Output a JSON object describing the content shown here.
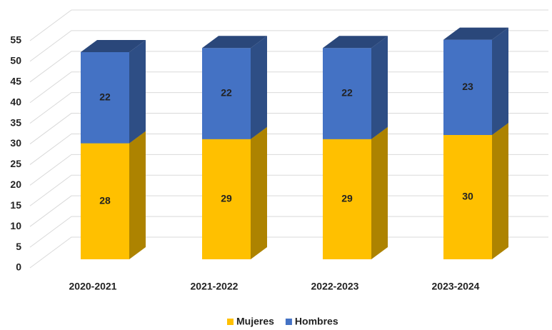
{
  "chart_data": {
    "type": "bar",
    "stacked": true,
    "categories": [
      "2020-2021",
      "2021-2022",
      "2022-2023",
      "2023-2024"
    ],
    "series": [
      {
        "name": "Mujeres",
        "color": "#FFC000",
        "values": [
          28,
          29,
          29,
          30
        ]
      },
      {
        "name": "Hombres",
        "color": "#4472C4",
        "values": [
          22,
          22,
          22,
          23
        ]
      }
    ],
    "ylim": [
      0,
      55
    ],
    "yticks": [
      0,
      5,
      10,
      15,
      20,
      25,
      30,
      35,
      40,
      45,
      50,
      55
    ],
    "grid": true,
    "legend": "bottom"
  }
}
